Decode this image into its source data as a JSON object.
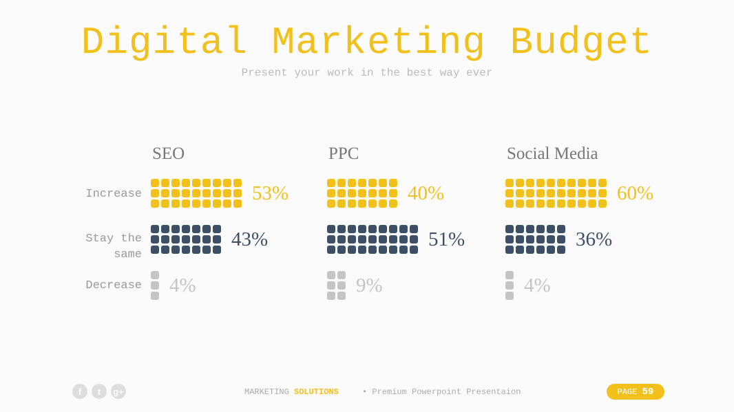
{
  "title": "Digital Marketing Budget",
  "subtitle": "Present your work in the best way ever",
  "row_labels": [
    "Increase",
    "Stay the same",
    "Decrease"
  ],
  "colors": {
    "increase": "#f2c01a",
    "same": "#3d4f66",
    "decrease": "#c4c4c4"
  },
  "categories": [
    {
      "name": "SEO",
      "rows": [
        {
          "value": "53%",
          "columns": 9
        },
        {
          "value": "43%",
          "columns": 7
        },
        {
          "value": "4%",
          "columns": 1
        }
      ]
    },
    {
      "name": "PPC",
      "rows": [
        {
          "value": "40%",
          "columns": 7
        },
        {
          "value": "51%",
          "columns": 9
        },
        {
          "value": "9%",
          "columns": 2
        }
      ]
    },
    {
      "name": "Social Media",
      "rows": [
        {
          "value": "60%",
          "columns": 10
        },
        {
          "value": "36%",
          "columns": 6
        },
        {
          "value": "4%",
          "columns": 1
        }
      ]
    }
  ],
  "footer": {
    "social": [
      "f",
      "t",
      "g+"
    ],
    "brand_a": "MARKETING",
    "brand_b": "SOLUTIONS",
    "tagline": "Premium Powerpoint Presentaion",
    "page_label": "PAGE",
    "page_num": "59"
  }
}
